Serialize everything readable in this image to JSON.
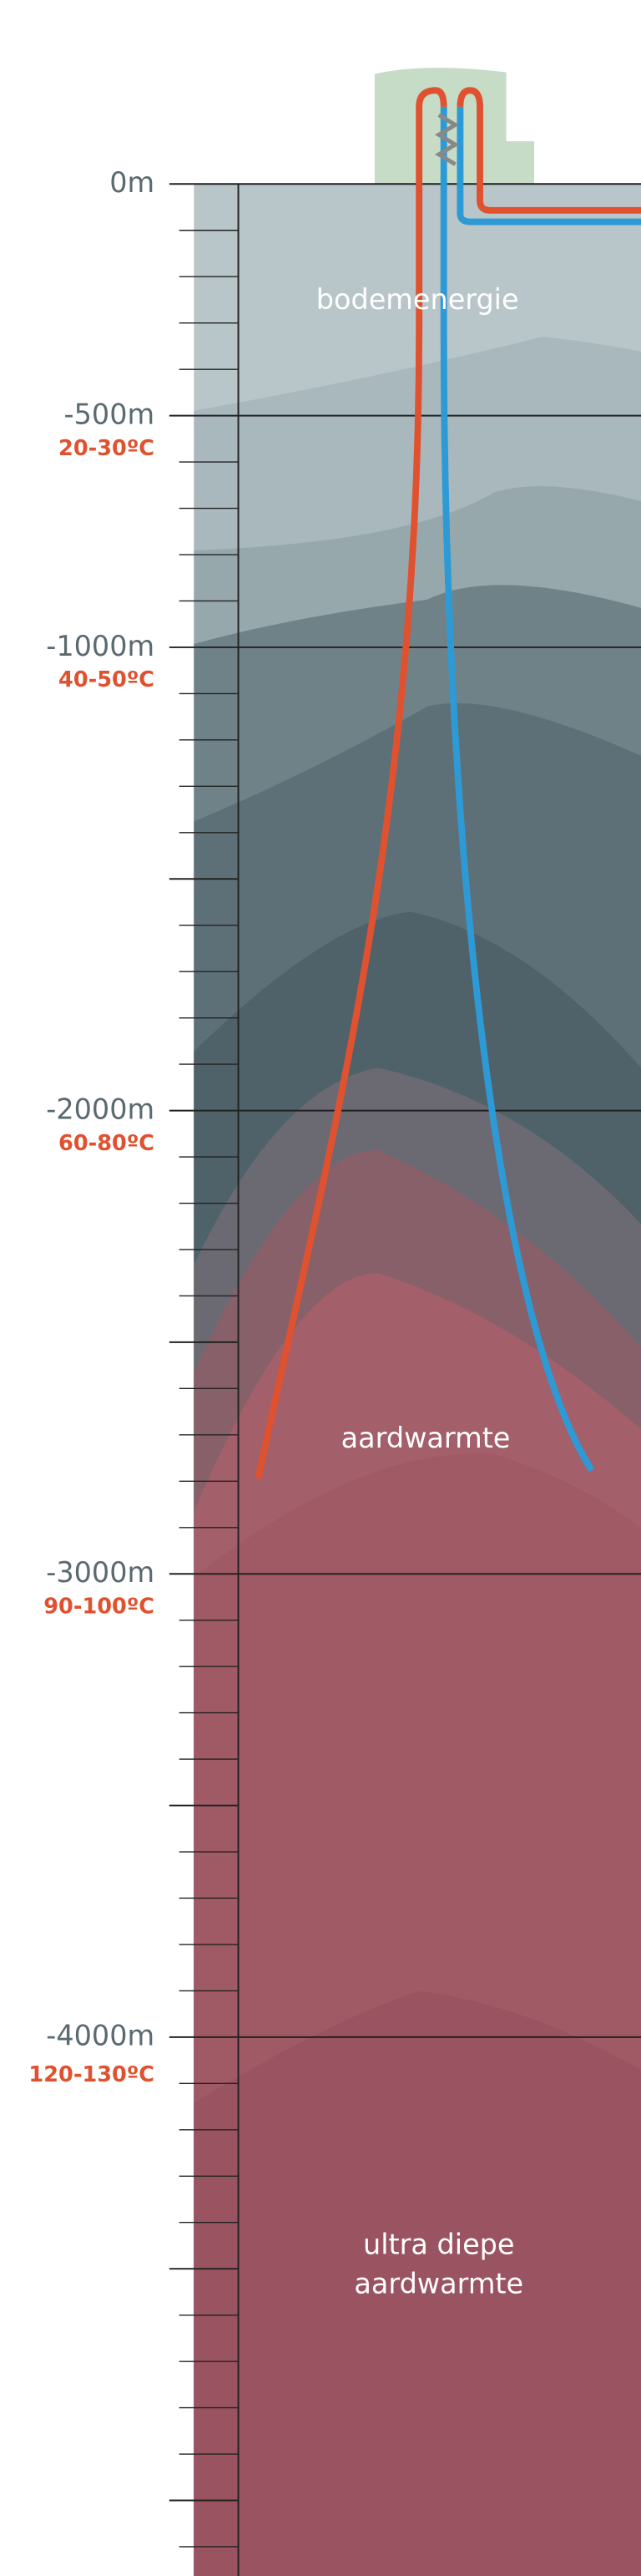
{
  "depths": [
    "0m",
    "-500m",
    "-1000m",
    "-2000m",
    "-3000m",
    "-4000m"
  ],
  "temperatures": [
    "20-30ºC",
    "40-50ºC",
    "60-80ºC",
    "90-100ºC",
    "120-130ºC"
  ],
  "zones": [
    {
      "lines": [
        "bodemenergie"
      ]
    },
    {
      "lines": [
        "aardwarmte"
      ]
    },
    {
      "lines": [
        "ultra diepe",
        "aardwarmte"
      ]
    }
  ]
}
